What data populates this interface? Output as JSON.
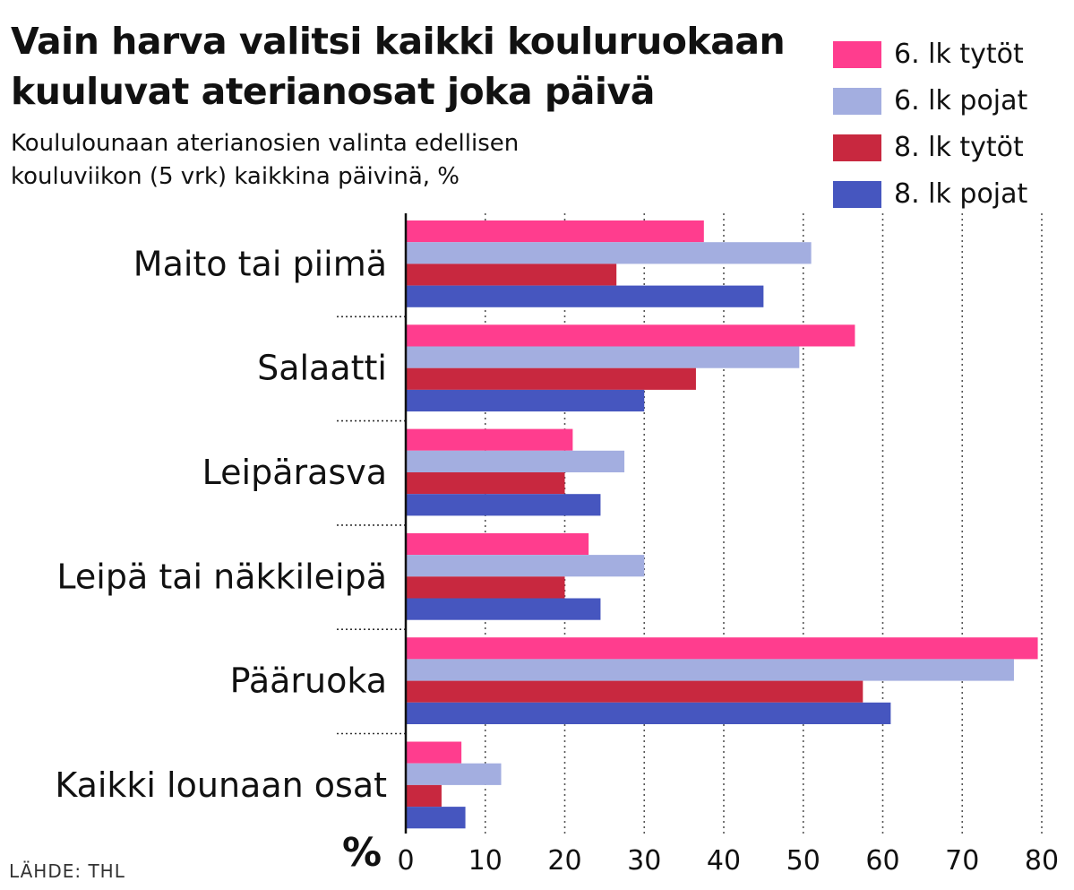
{
  "title": "Vain harva valitsi kaikki kouluruokaan kuuluvat aterianosat joka päivä",
  "subtitle": "Koululounaan aterianosien valinta edellisen kouluviikon (5 vrk) kaikkina päivinä, %",
  "source": "LÄHDE: THL",
  "colors": {
    "girls6": "#ff3d8e",
    "boys6": "#a3aee0",
    "girls8": "#c8283f",
    "boys8": "#4656bf",
    "grid": "#555555"
  },
  "chart_data": {
    "type": "bar",
    "orientation": "horizontal",
    "unit_label": "%",
    "categories": [
      "Maito tai piimä",
      "Salaatti",
      "Leipärasva",
      "Leipä tai näkkileipä",
      "Pääruoka",
      "Kaikki lounaan osat"
    ],
    "series": [
      {
        "name": "6. lk tytöt",
        "color": "#ff3d8e",
        "values": [
          37.5,
          56.5,
          21,
          23,
          79.5,
          7
        ]
      },
      {
        "name": "6. lk pojat",
        "color": "#a3aee0",
        "values": [
          51,
          49.5,
          27.5,
          30,
          76.5,
          12
        ]
      },
      {
        "name": "8. lk tytöt",
        "color": "#c8283f",
        "values": [
          26.5,
          36.5,
          20,
          20,
          57.5,
          4.5
        ]
      },
      {
        "name": "8. lk pojat",
        "color": "#4656bf",
        "values": [
          45,
          30,
          24.5,
          24.5,
          61,
          7.5
        ]
      }
    ],
    "xlim": [
      0,
      80
    ],
    "xticks": [
      "0",
      "10",
      "20",
      "30",
      "40",
      "50",
      "60",
      "70",
      "80"
    ],
    "grid": true,
    "legend_position": "top-right"
  }
}
